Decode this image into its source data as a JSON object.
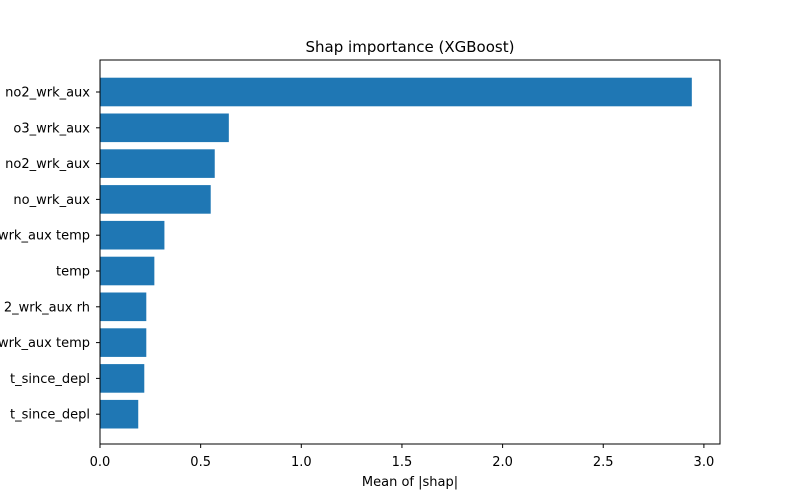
{
  "chart_data": {
    "type": "bar",
    "orientation": "horizontal",
    "title": "Shap importance (XGBoost)",
    "xlabel": "Mean of |shap|",
    "ylabel": "",
    "xlim": [
      0,
      3.08
    ],
    "x_ticks": [
      "0.0",
      "0.5",
      "1.0",
      "1.5",
      "2.0",
      "2.5",
      "3.0"
    ],
    "grid": false,
    "bar_color": "#1f77b4",
    "categories": [
      "no2_wrk_aux",
      "o3_wrk_aux",
      "no2_wrk_aux",
      "no_wrk_aux",
      "wrk_aux temp",
      "temp",
      "2_wrk_aux rh",
      "wrk_aux temp",
      "t_since_depl",
      "t_since_depl"
    ],
    "values": [
      2.94,
      0.64,
      0.57,
      0.55,
      0.32,
      0.27,
      0.23,
      0.23,
      0.22,
      0.19
    ]
  }
}
